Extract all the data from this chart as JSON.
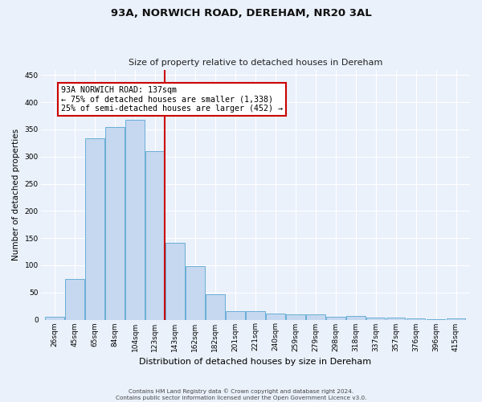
{
  "title": "93A, NORWICH ROAD, DEREHAM, NR20 3AL",
  "subtitle": "Size of property relative to detached houses in Dereham",
  "xlabel": "Distribution of detached houses by size in Dereham",
  "ylabel": "Number of detached properties",
  "categories": [
    "26sqm",
    "45sqm",
    "65sqm",
    "84sqm",
    "104sqm",
    "123sqm",
    "143sqm",
    "162sqm",
    "182sqm",
    "201sqm",
    "221sqm",
    "240sqm",
    "259sqm",
    "279sqm",
    "298sqm",
    "318sqm",
    "337sqm",
    "357sqm",
    "376sqm",
    "396sqm",
    "415sqm"
  ],
  "values": [
    5,
    75,
    334,
    354,
    367,
    310,
    142,
    99,
    46,
    16,
    16,
    11,
    9,
    9,
    5,
    6,
    4,
    4,
    2,
    1,
    2
  ],
  "bar_color": "#c5d8f0",
  "bar_edge_color": "#6aaed6",
  "vline_x_index": 6,
  "vline_color": "#cc0000",
  "annotation_line1": "93A NORWICH ROAD: 137sqm",
  "annotation_line2": "← 75% of detached houses are smaller (1,338)",
  "annotation_line3": "25% of semi-detached houses are larger (452) →",
  "annotation_box_color": "#cc0000",
  "annotation_bg": "#ffffff",
  "ylim": [
    0,
    460
  ],
  "yticks": [
    0,
    50,
    100,
    150,
    200,
    250,
    300,
    350,
    400,
    450
  ],
  "background_color": "#eaf1fb",
  "grid_color": "#ffffff",
  "footer_line1": "Contains HM Land Registry data © Crown copyright and database right 2024.",
  "footer_line2": "Contains public sector information licensed under the Open Government Licence v3.0."
}
